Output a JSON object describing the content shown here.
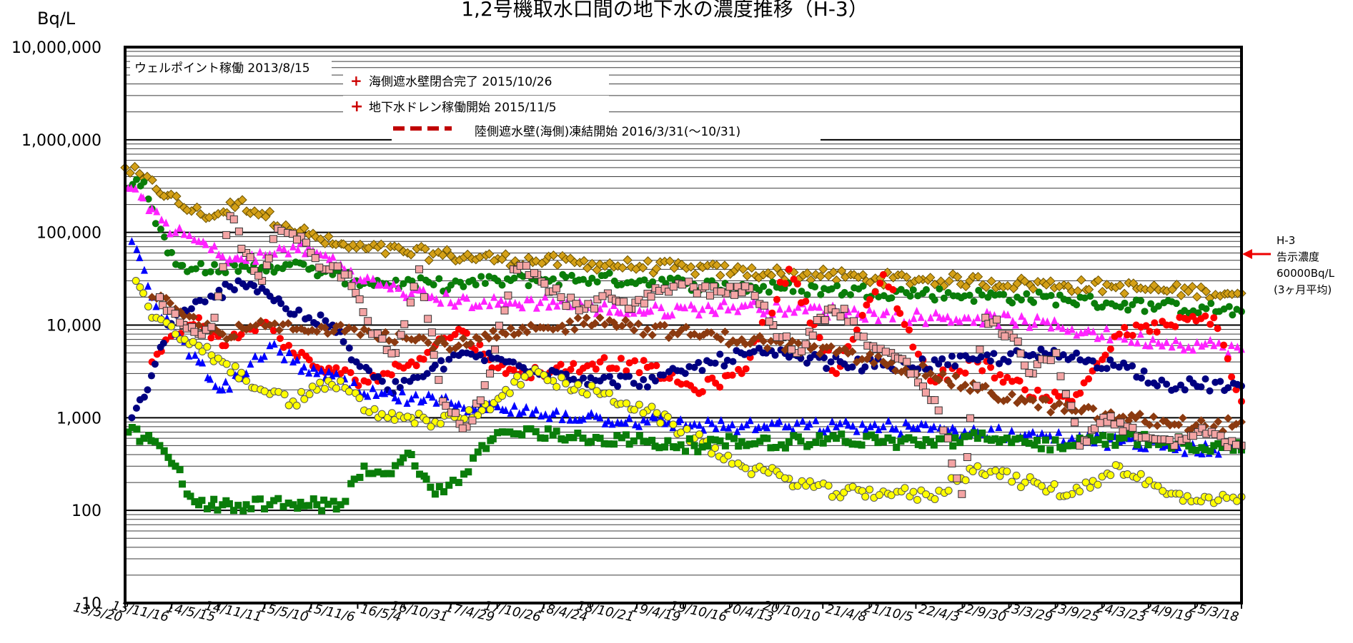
{
  "chart_data": {
    "type": "scatter",
    "title": "1,2号機取水口間の地下水の濃度推移（H-3）",
    "ylabel": "Bq/L",
    "yscale": "log",
    "ylim": [
      10,
      10000000
    ],
    "y_ticks": [
      "10,000,000",
      "1,000,000",
      "100,000",
      "10,000",
      "1,000",
      "100",
      "10"
    ],
    "xlim": [
      "2013-05-20",
      "2025-03-18"
    ],
    "x_ticks": [
      "13/5/20",
      "13/11/16",
      "14/5/15",
      "14/11/11",
      "15/5/10",
      "15/11/6",
      "16/5/4",
      "16/10/31",
      "17/4/29",
      "17/10/26",
      "18/4/24",
      "18/10/21",
      "19/4/19",
      "19/10/16",
      "20/4/13",
      "20/10/10",
      "21/4/8",
      "21/10/5",
      "22/4/3",
      "22/9/30",
      "23/3/29",
      "23/9/25",
      "24/3/23",
      "24/9/19",
      "25/3/18"
    ],
    "grid": true,
    "annotations": [
      {
        "text": "ウェルポイント稼働 2013/8/15",
        "date": "2013-08-15"
      },
      {
        "text": "海側遮水壁閉合完了 2015/10/26",
        "date": "2015-10-26"
      },
      {
        "text": "地下水ドレン稼働開始 2015/11/5",
        "date": "2015-11-05"
      },
      {
        "text": "陸側遮水壁(海側)凍結開始 2016/3/31(～10/31)",
        "date": "2016-03-31"
      }
    ],
    "reference": {
      "label_lines": [
        "H-3",
        "告示濃度",
        "60000Bq/L",
        "(3ヶ月平均)"
      ],
      "value": 60000
    },
    "series": [
      {
        "color": "#d4a017",
        "marker": "diamond",
        "x": [
          "2013-05-20",
          "2013-08-01",
          "2013-11-01",
          "2014-02-01",
          "2014-05-01",
          "2014-08-01",
          "2014-11-01",
          "2015-02-01",
          "2015-05-01",
          "2015-08-01",
          "2015-11-01",
          "2016-05-01",
          "2016-11-01",
          "2017-05-01",
          "2017-11-01",
          "2018-05-01",
          "2018-11-01",
          "2019-05-01",
          "2019-11-01",
          "2020-05-01",
          "2020-11-01",
          "2021-05-01",
          "2021-11-01",
          "2022-05-01",
          "2022-11-01",
          "2023-05-01",
          "2023-11-01",
          "2024-05-01",
          "2024-11-01",
          "2025-03-18"
        ],
        "y": [
          500000,
          380000,
          250000,
          170000,
          150000,
          210000,
          160000,
          120000,
          95000,
          75000,
          68000,
          62000,
          56000,
          52000,
          49000,
          46000,
          43000,
          41000,
          38000,
          36000,
          34000,
          32000,
          31000,
          30000,
          28000,
          27000,
          26000,
          24000,
          23000,
          22000
        ]
      },
      {
        "color": "#0a7d0a",
        "marker": "circle",
        "x": [
          "2013-06-01",
          "2013-08-01",
          "2013-11-01",
          "2014-02-01",
          "2014-05-01",
          "2014-08-01",
          "2014-11-01",
          "2015-02-01",
          "2015-05-01",
          "2015-08-01",
          "2015-11-01",
          "2016-05-01",
          "2016-11-01",
          "2017-05-01",
          "2017-11-01",
          "2018-05-01",
          "2018-11-01",
          "2019-05-01",
          "2019-11-01",
          "2020-05-01",
          "2020-11-01",
          "2021-05-01",
          "2021-11-01",
          "2022-05-01",
          "2022-11-01",
          "2023-05-01",
          "2023-11-01",
          "2024-05-01",
          "2024-11-01",
          "2025-03-18"
        ],
        "y": [
          300000,
          350000,
          60000,
          40000,
          45000,
          38000,
          42000,
          45000,
          40000,
          35000,
          30000,
          28000,
          27000,
          30000,
          31000,
          32000,
          30000,
          28000,
          26000,
          25000,
          24000,
          23000,
          22000,
          21000,
          20000,
          19000,
          17000,
          16000,
          15000,
          14000
        ]
      },
      {
        "color": "#ff22ff",
        "marker": "triangle",
        "x": [
          "2013-06-01",
          "2013-09-01",
          "2013-12-01",
          "2014-03-01",
          "2014-06-01",
          "2014-09-01",
          "2014-12-01",
          "2015-03-01",
          "2015-06-01",
          "2015-09-01",
          "2015-12-01",
          "2016-06-01",
          "2016-12-01",
          "2017-06-01",
          "2017-12-01",
          "2018-06-01",
          "2018-12-01",
          "2019-06-01",
          "2019-12-01",
          "2020-06-01",
          "2020-12-01",
          "2021-06-01",
          "2021-12-01",
          "2022-06-01",
          "2022-12-01",
          "2023-06-01",
          "2023-12-01",
          "2024-06-01",
          "2024-12-01",
          "2025-03-18"
        ],
        "y": [
          300000,
          180000,
          100000,
          80000,
          55000,
          50000,
          58000,
          70000,
          60000,
          45000,
          30000,
          22000,
          18000,
          17000,
          18000,
          15000,
          14000,
          15000,
          16000,
          15000,
          14000,
          13000,
          12000,
          12000,
          11000,
          9000,
          7500,
          6500,
          6000,
          5500
        ]
      },
      {
        "color": "#ff0000",
        "marker": "circle",
        "x": [
          "2013-09-01",
          "2013-12-01",
          "2014-03-01",
          "2014-06-01",
          "2014-09-01",
          "2014-12-01",
          "2015-03-01",
          "2015-06-01",
          "2015-09-01",
          "2015-12-01",
          "2016-03-01",
          "2016-06-01",
          "2016-09-01",
          "2016-12-01",
          "2017-06-01",
          "2017-12-01",
          "2018-06-01",
          "2018-12-01",
          "2019-06-01",
          "2019-12-01",
          "2020-06-01",
          "2020-12-01",
          "2021-06-01",
          "2021-12-01",
          "2022-06-01",
          "2022-12-01",
          "2023-06-01",
          "2023-12-01",
          "2024-06-01",
          "2024-12-01",
          "2025-03-18"
        ],
        "y": [
          4000,
          8000,
          12000,
          6000,
          9000,
          10000,
          5000,
          3500,
          3000,
          2500,
          3000,
          4000,
          6000,
          9000,
          3000,
          3200,
          4000,
          3500,
          2000,
          3000,
          40000,
          3000,
          35000,
          2500,
          4000,
          2000,
          1500,
          8000,
          10000,
          12000,
          1500
        ]
      },
      {
        "color": "#000080",
        "marker": "circle",
        "x": [
          "2013-06-15",
          "2013-08-15",
          "2013-11-01",
          "2014-02-01",
          "2014-05-01",
          "2014-08-01",
          "2014-11-01",
          "2015-02-01",
          "2015-05-01",
          "2015-08-01",
          "2015-11-01",
          "2016-03-01",
          "2016-08-01",
          "2017-01-01",
          "2017-06-01",
          "2018-01-01",
          "2018-06-01",
          "2019-01-01",
          "2019-06-01",
          "2020-01-01",
          "2020-06-01",
          "2021-01-01",
          "2021-06-01",
          "2022-01-01",
          "2022-06-01",
          "2023-01-01",
          "2023-06-01",
          "2024-01-01",
          "2024-06-01",
          "2025-03-18"
        ],
        "y": [
          1000,
          2000,
          10000,
          15000,
          20000,
          30000,
          25000,
          15000,
          12000,
          10000,
          4000,
          2000,
          3000,
          5000,
          4000,
          3000,
          2500,
          2500,
          3500,
          5000,
          4500,
          3800,
          3700,
          3800,
          4200,
          4800,
          4500,
          3500,
          2300,
          2200
        ]
      },
      {
        "color": "#0000ff",
        "marker": "triangle",
        "x": [
          "2013-06-15",
          "2013-09-01",
          "2013-12-01",
          "2014-03-01",
          "2014-06-01",
          "2014-09-01",
          "2014-12-01",
          "2015-03-01",
          "2015-06-01",
          "2015-09-01",
          "2015-12-01",
          "2016-06-01",
          "2016-12-01",
          "2017-06-01",
          "2017-12-01",
          "2018-06-01",
          "2018-12-01",
          "2019-06-01",
          "2019-12-01",
          "2020-06-01",
          "2020-12-01",
          "2021-06-01",
          "2021-12-01",
          "2022-06-01",
          "2022-12-01",
          "2023-06-01",
          "2023-12-01",
          "2024-06-01",
          "2024-12-01",
          "2025-03-18"
        ],
        "y": [
          80000,
          20000,
          8000,
          4000,
          2000,
          3000,
          6000,
          4000,
          3000,
          2500,
          1800,
          1600,
          1400,
          1200,
          1100,
          1000,
          900,
          850,
          800,
          800,
          800,
          800,
          750,
          700,
          650,
          600,
          550,
          500,
          450,
          450
        ]
      },
      {
        "color": "#8b3a10",
        "marker": "diamond",
        "x": [
          "2013-09-01",
          "2013-12-01",
          "2014-03-01",
          "2014-06-01",
          "2014-09-01",
          "2014-12-01",
          "2015-03-01",
          "2015-06-01",
          "2015-09-01",
          "2015-12-01",
          "2016-06-01",
          "2016-12-01",
          "2017-06-01",
          "2017-12-01",
          "2018-06-01",
          "2018-12-01",
          "2019-06-01",
          "2019-12-01",
          "2020-06-01",
          "2020-12-01",
          "2021-06-01",
          "2021-12-01",
          "2022-06-01",
          "2022-12-01",
          "2023-06-01",
          "2023-12-01",
          "2024-06-01",
          "2024-12-01",
          "2025-03-18"
        ],
        "y": [
          20000,
          15000,
          10000,
          8000,
          9000,
          10000,
          9000,
          8500,
          10000,
          9000,
          7000,
          6000,
          8000,
          9000,
          12000,
          9000,
          8000,
          7000,
          6000,
          5000,
          4000,
          3000,
          2000,
          1500,
          1200,
          1000,
          900,
          800,
          900
        ]
      },
      {
        "color": "#ffff00",
        "marker": "circle",
        "x": [
          "2013-07-01",
          "2013-09-01",
          "2013-12-01",
          "2014-03-01",
          "2014-06-01",
          "2014-09-01",
          "2014-12-01",
          "2015-03-01",
          "2015-06-01",
          "2015-09-01",
          "2015-12-01",
          "2016-03-01",
          "2016-06-01",
          "2016-09-01",
          "2016-12-01",
          "2017-03-01",
          "2017-06-01",
          "2017-09-01",
          "2017-12-01",
          "2018-06-01",
          "2018-12-01",
          "2019-06-01",
          "2019-12-01",
          "2020-06-01",
          "2020-12-01",
          "2021-06-01",
          "2021-12-01",
          "2022-06-01",
          "2022-12-01",
          "2023-06-01",
          "2023-12-01",
          "2024-06-01",
          "2024-12-01",
          "2025-03-18"
        ],
        "y": [
          30000,
          12000,
          8000,
          6000,
          4000,
          2500,
          1800,
          1500,
          2000,
          2500,
          1200,
          1000,
          1000,
          900,
          1000,
          1200,
          2000,
          3000,
          2500,
          1800,
          1200,
          600,
          300,
          220,
          150,
          160,
          140,
          300,
          200,
          150,
          300,
          150,
          120,
          140
        ]
      },
      {
        "color": "#0a7d0a",
        "marker": "square",
        "x": [
          "2013-06-01",
          "2013-08-01",
          "2013-10-01",
          "2013-12-01",
          "2014-01-15",
          "2014-03-01",
          "2014-06-01",
          "2014-09-01",
          "2014-12-01",
          "2015-03-01",
          "2015-06-01",
          "2015-09-01",
          "2015-12-01",
          "2016-03-01",
          "2016-06-01",
          "2016-09-01",
          "2016-12-01",
          "2017-03-01",
          "2017-06-01",
          "2017-12-01",
          "2018-06-01",
          "2018-12-01",
          "2019-06-01",
          "2019-12-01",
          "2020-06-01",
          "2020-12-01",
          "2021-06-01",
          "2021-12-01",
          "2022-06-01",
          "2022-12-01",
          "2023-06-01",
          "2023-12-01",
          "2024-06-01",
          "2024-12-01",
          "2025-03-18"
        ],
        "y": [
          700,
          600,
          500,
          300,
          150,
          115,
          115,
          115,
          115,
          115,
          115,
          115,
          300,
          250,
          400,
          150,
          200,
          500,
          700,
          650,
          600,
          550,
          500,
          550,
          550,
          600,
          550,
          550,
          600,
          550,
          500,
          600,
          550,
          500,
          450
        ]
      },
      {
        "color": "#f4a4a4",
        "marker": "square",
        "x": [
          "2013-10-01",
          "2014-01-01",
          "2014-03-01",
          "2014-05-01",
          "2014-07-01",
          "2014-09-01",
          "2014-11-01",
          "2015-01-01",
          "2015-04-01",
          "2015-07-01",
          "2015-10-01",
          "2016-01-01",
          "2016-04-01",
          "2016-07-01",
          "2016-10-01",
          "2017-01-01",
          "2017-04-01",
          "2017-07-01",
          "2017-10-01",
          "2018-01-01",
          "2018-04-01",
          "2018-07-01",
          "2018-10-01",
          "2019-01-01",
          "2019-04-01",
          "2019-07-01",
          "2019-10-01",
          "2020-01-01",
          "2020-04-01",
          "2020-07-01",
          "2020-10-01",
          "2021-01-01",
          "2021-04-01",
          "2021-07-01",
          "2021-10-01",
          "2022-01-01",
          "2022-04-01",
          "2022-07-01",
          "2022-10-01",
          "2023-01-01",
          "2023-04-01",
          "2023-07-01",
          "2023-10-01",
          "2024-01-01",
          "2024-04-01",
          "2024-07-01",
          "2024-10-01",
          "2025-03-18"
        ],
        "y": [
          20000,
          10000,
          8000,
          12000,
          150000,
          60000,
          30000,
          110000,
          90000,
          40000,
          35000,
          8000,
          5000,
          40000,
          1500,
          800,
          3000,
          40000,
          35000,
          20000,
          15000,
          22000,
          15000,
          25000,
          28000,
          25000,
          22000,
          25000,
          10000,
          5000,
          12000,
          15000,
          6000,
          5000,
          3000,
          1200,
          150,
          12000,
          8000,
          3000,
          5000,
          500,
          1000,
          800,
          600,
          500,
          700,
          500
        ]
      }
    ]
  }
}
